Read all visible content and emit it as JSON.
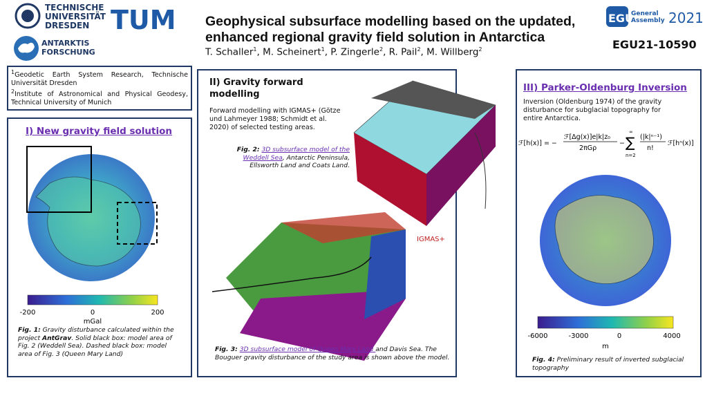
{
  "header": {
    "tud": [
      "TECHNISCHE",
      "UNIVERSITÄT",
      "DRESDEN"
    ],
    "tum": "TUM",
    "antarktis": [
      "ANTARKTIS",
      "FORSCHUNG"
    ],
    "egu": "EGU",
    "egu_general": "General",
    "egu_assembly": "Assembly",
    "egu_year": "2021",
    "title": [
      "Geophysical subsurface modelling based on the updated,",
      "enhanced regional gravity field solution in Antarctica"
    ],
    "authors": [
      {
        "name": "T. Schaller",
        "sup": "1"
      },
      {
        "name": ", M. Scheinert",
        "sup": "1"
      },
      {
        "name": ", P. Zingerle",
        "sup": "2"
      },
      {
        "name": ", R. Pail",
        "sup": "2"
      },
      {
        "name": ", M. Willberg",
        "sup": "2"
      }
    ],
    "code": "EGU21-10590"
  },
  "affiliations": [
    {
      "sup": "1",
      "text": "Geodetic Earth System Research, Technische Universität Dresden"
    },
    {
      "sup": "2",
      "text": "Institute of Astronomical and Physical Geodesy, Technical University of Munich"
    }
  ],
  "panel1": {
    "heading": "I) New gravity field solution",
    "colorbar": {
      "ticks": [
        "-200",
        "0",
        "200"
      ],
      "unit": "mGal"
    },
    "caption": {
      "label": "Fig. 1:",
      "text1": " Gravity disturbance calculated within the project ",
      "bold": "AntGrav",
      "text2": ". Solid black box: model area of Fig. 2 (Weddell Sea). Dashed black box: model area of Fig. 3 (Queen Mary Land)"
    }
  },
  "panel2": {
    "heading": [
      "II) Gravity forward",
      "modelling"
    ],
    "text": "Forward modelling with IGMAS+ (Götze und Lahmeyer 1988; Schmidt et al. 2020) of selected testing areas.",
    "fig2": {
      "label": "Fig. 2:",
      "link": "3D subsurface model of the Weddell Sea",
      "rest": ", Antarctic Peninsula, Ellsworth Land and Coats Land."
    },
    "igmas": "IGMAS+",
    "fig3": {
      "label": "Fig. 3:",
      "link": "3D subsurface model of Queen Mary Land ",
      "rest": "and Davis Sea. The Bouguer gravity disturbance of the study area is shown above the model."
    }
  },
  "panel3": {
    "heading": "III) Parker-Oldenburg Inversion",
    "text": "Inversion (Oldenburg 1974) of the gravity disturbance for subglacial topography for entire Antarctica.",
    "formula": {
      "lhs": "ℱ[h(x)] = −",
      "num": "ℱ[Δg(x)]e|k|z₀",
      "den": "2πGρ",
      "minus": "−",
      "sum": "∑",
      "top": "∞",
      "bottom": "n=2",
      "num2": "(|k|ⁿ⁻¹)",
      "den2": "n!",
      "tail": "ℱ[hⁿ(x)]"
    },
    "colorbar": {
      "ticks": [
        "-6000",
        "-3000",
        "0",
        "4000"
      ],
      "unit": "m"
    },
    "caption": {
      "label": "Fig. 4:",
      "text": " Preliminary result of inverted subglacial topography"
    }
  }
}
